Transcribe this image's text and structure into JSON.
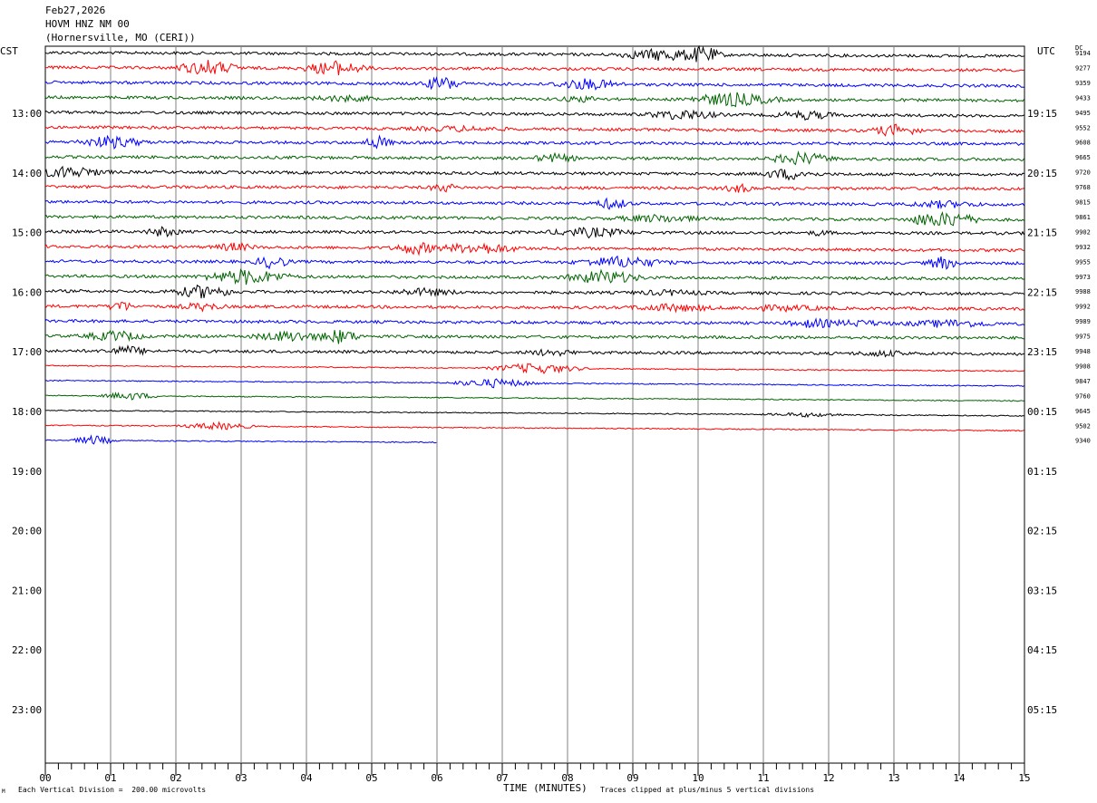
{
  "header": {
    "date": "Feb27,2026",
    "station": "HOVM HNZ NM 00",
    "location": "(Hornersville, MO (CERI))"
  },
  "chart_data": {
    "type": "line",
    "title": "HOVM HNZ NM 00",
    "left_axis_label": "CST",
    "right_axis_label": "UTC",
    "dc_label": "DC",
    "xlabel": "TIME (MINUTES)",
    "xlim": [
      0,
      15
    ],
    "x_ticks": [
      "00",
      "01",
      "02",
      "03",
      "04",
      "05",
      "06",
      "07",
      "08",
      "09",
      "10",
      "11",
      "12",
      "13",
      "14",
      "15"
    ],
    "left_hour_labels": [
      "13:00",
      "14:00",
      "15:00",
      "16:00",
      "17:00",
      "18:00",
      "19:00",
      "20:00",
      "21:00",
      "22:00",
      "23:00"
    ],
    "right_hour_labels": [
      "19:15",
      "20:15",
      "21:15",
      "22:15",
      "23:15",
      "00:15",
      "01:15",
      "02:15",
      "03:15",
      "04:15",
      "05:15"
    ],
    "dc_offsets": [
      "9194",
      "9277",
      "9359",
      "9433",
      "9495",
      "9552",
      "9608",
      "9665",
      "9720",
      "9768",
      "9815",
      "9861",
      "9902",
      "9932",
      "9955",
      "9973",
      "9988",
      "9992",
      "9989",
      "9975",
      "9948",
      "9908",
      "9847",
      "9760",
      "9645",
      "9502",
      "9340"
    ],
    "trace_colors": [
      "#000000",
      "#ff0000",
      "#0000ff",
      "#006400"
    ],
    "trace_count": 27,
    "last_trace_end_minute": 6.0,
    "footer_left": "Each Vertical Division =  200.00 microvolts",
    "footer_right": "Traces clipped at plus/minus 5 vertical divisions",
    "corner_mark": "M"
  }
}
